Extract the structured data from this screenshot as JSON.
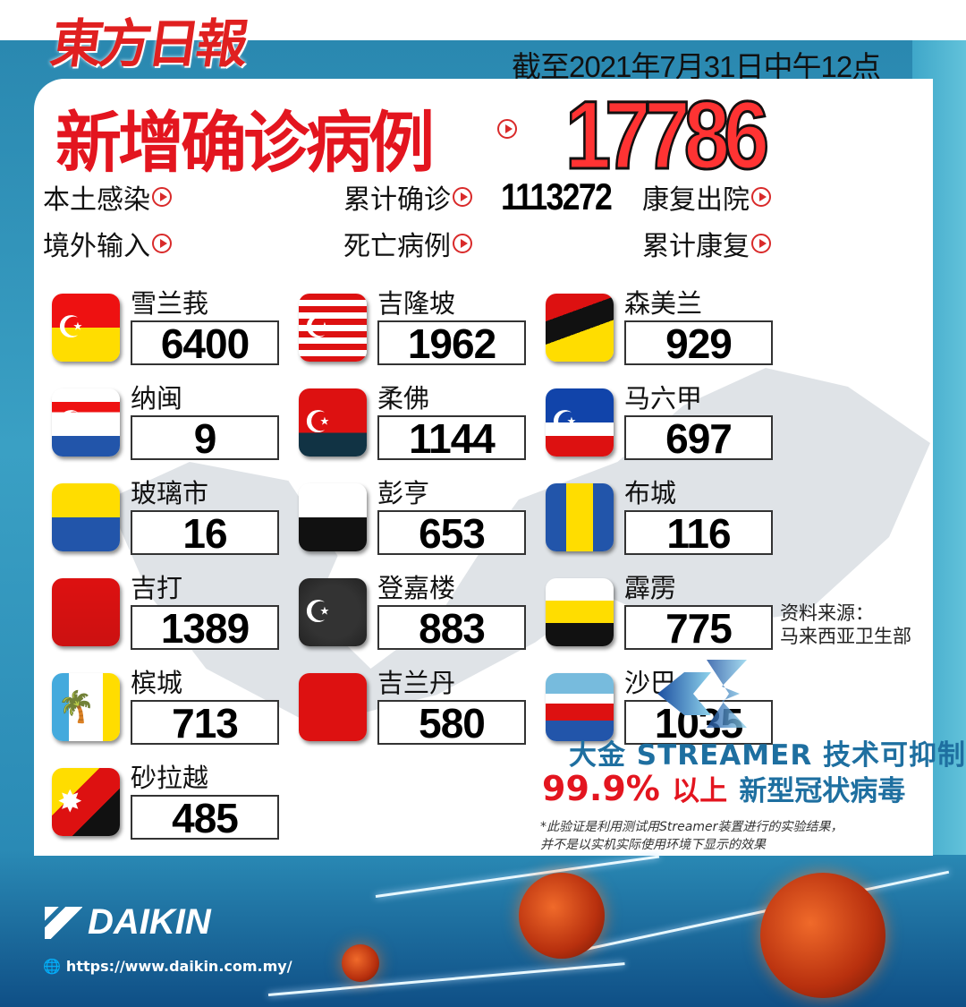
{
  "header": {
    "logo": "東方日報",
    "as_of": "截至2021年7月31日中午12点"
  },
  "headline": {
    "label": "新增确诊病例",
    "value": "17786"
  },
  "stats": [
    {
      "label": "本土感染",
      "value": ""
    },
    {
      "label": "境外输入",
      "value": ""
    },
    {
      "label": "累计确诊",
      "value": "1113272"
    },
    {
      "label": "死亡病例",
      "value": ""
    },
    {
      "label": "康复出院",
      "value": ""
    },
    {
      "label": "累计康复",
      "value": ""
    }
  ],
  "states": [
    {
      "name": "雪兰莪",
      "cases": "6400",
      "flag": "selangor"
    },
    {
      "name": "吉隆坡",
      "cases": "1962",
      "flag": "kuala-lumpur"
    },
    {
      "name": "森美兰",
      "cases": "929",
      "flag": "negeri-sembilan"
    },
    {
      "name": "纳闽",
      "cases": "9",
      "flag": "labuan"
    },
    {
      "name": "柔佛",
      "cases": "1144",
      "flag": "johor"
    },
    {
      "name": "马六甲",
      "cases": "697",
      "flag": "melaka"
    },
    {
      "name": "玻璃市",
      "cases": "16",
      "flag": "perlis"
    },
    {
      "name": "彭亨",
      "cases": "653",
      "flag": "pahang"
    },
    {
      "name": "布城",
      "cases": "116",
      "flag": "putrajaya"
    },
    {
      "name": "吉打",
      "cases": "1389",
      "flag": "kedah"
    },
    {
      "name": "登嘉楼",
      "cases": "883",
      "flag": "terengganu"
    },
    {
      "name": "霹雳",
      "cases": "775",
      "flag": "perak"
    },
    {
      "name": "槟城",
      "cases": "713",
      "flag": "penang"
    },
    {
      "name": "吉兰丹",
      "cases": "580",
      "flag": "kelantan"
    },
    {
      "name": "沙巴",
      "cases": "1035",
      "flag": "sabah"
    },
    {
      "name": "砂拉越",
      "cases": "485",
      "flag": "sarawak"
    }
  ],
  "source": {
    "label": "资料来源：",
    "value": "马来西亚卫生部"
  },
  "ad": {
    "line1": "大金 STREAMER 技术可抑制",
    "percent": "99.9%",
    "line2_a": "以上",
    "line2_b": "新型冠状病毒",
    "note1": "*此验证是利用测试用Streamer装置进行的实验结果，",
    "note2": "并不是以实机实际使用环境下显示的效果",
    "brand": "DAIKIN",
    "url": "https://www.daikin.com.my/"
  },
  "colors": {
    "accent_red": "#e3151f",
    "brand_blue": "#1e6fa0",
    "background_blue": "#2a88b0"
  }
}
